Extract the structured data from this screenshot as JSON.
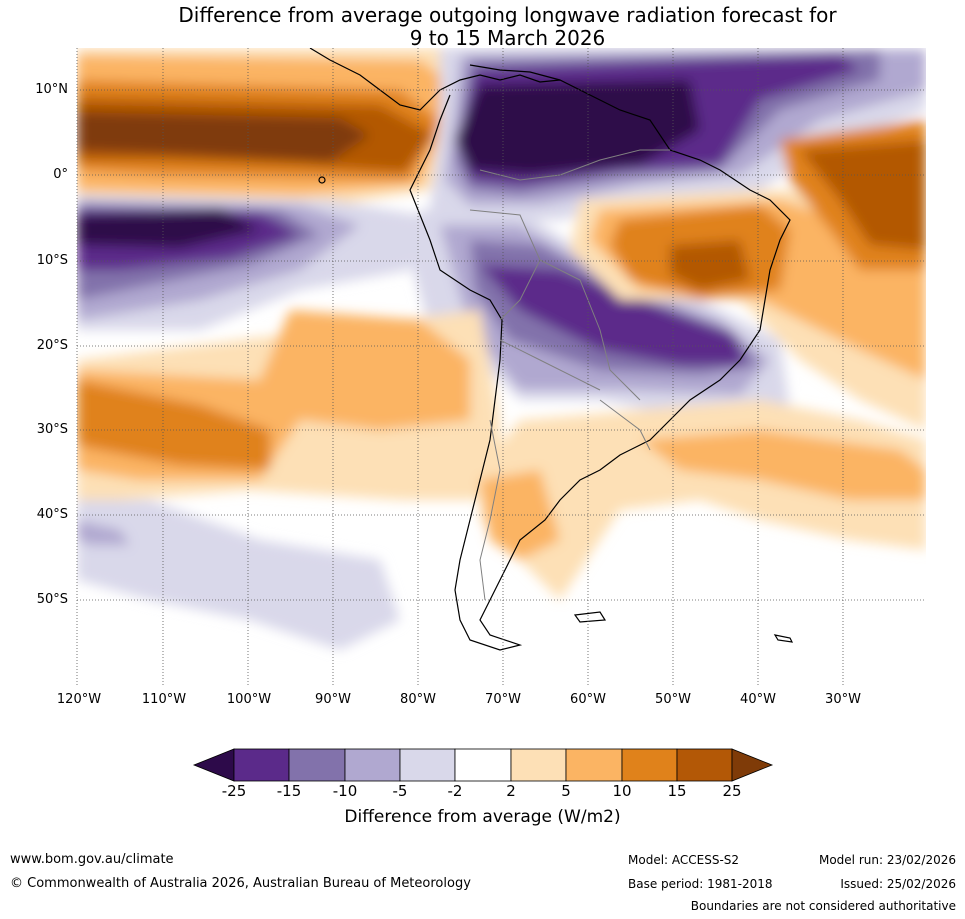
{
  "title": {
    "line1": "Difference from average outgoing longwave radiation forecast for",
    "line2": "9 to 15 March 2026"
  },
  "map": {
    "region": "South America and surrounding oceans",
    "latitude_labels": [
      "10°N",
      "0°",
      "10°S",
      "20°S",
      "30°S",
      "40°S",
      "50°S"
    ],
    "longitude_labels": [
      "120°W",
      "110°W",
      "100°W",
      "90°W",
      "80°W",
      "70°W",
      "60°W",
      "50°W",
      "40°W",
      "30°W"
    ]
  },
  "colorbar": {
    "title": "Difference from average (W/m2)",
    "tick_labels": [
      "-25",
      "-15",
      "-10",
      "-5",
      "-2",
      "2",
      "5",
      "10",
      "15",
      "25"
    ],
    "colors": [
      "#2d0a4a",
      "#5b2a8a",
      "#8272ab",
      "#b0a8d0",
      "#d9d8ea",
      "#ffffff",
      "#fde0b6",
      "#fbb463",
      "#e0821b",
      "#b35806",
      "#7f3b08"
    ]
  },
  "footer": {
    "website": "www.bom.gov.au/climate",
    "copyright": "© Commonwealth of Australia 2026, Australian Bureau of Meteorology",
    "model": "Model: ACCESS-S2",
    "base_period": "Base period: 1981-2018",
    "model_run": "Model run: 23/02/2026",
    "issued": "Issued: 25/02/2026",
    "disclaimer": "Boundaries are not considered authoritative"
  }
}
